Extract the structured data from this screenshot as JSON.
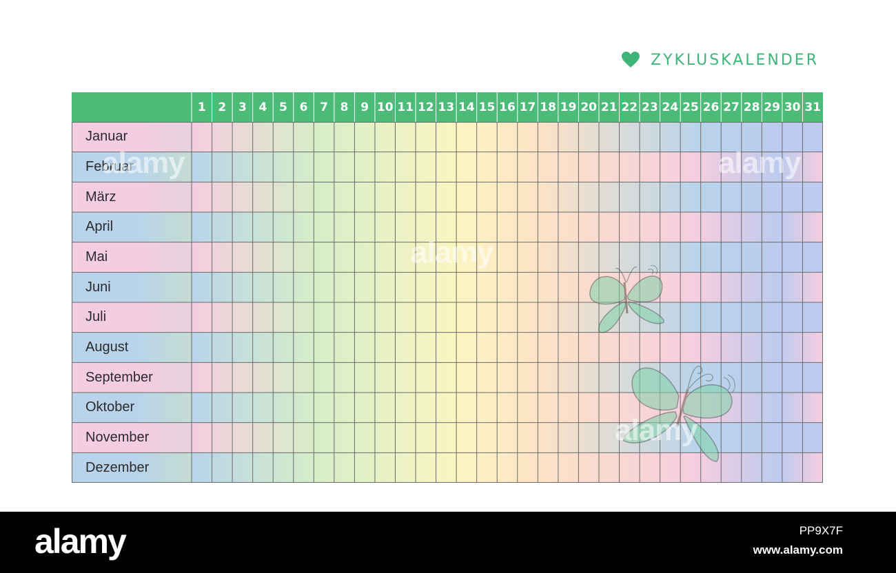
{
  "title": "ZYKLUSKALENDER",
  "icons": {
    "title_icon": "heart-icon",
    "decoration": "butterfly-icon"
  },
  "colors": {
    "accent": "#4cbb78",
    "title": "#3fb57a",
    "row_pink": "#f5cde0",
    "row_blue": "#b9d4ea",
    "band_yellow": "#fbf5c2",
    "band_green": "#d6eec8",
    "end_blue": "#bccbee"
  },
  "days": [
    "1",
    "2",
    "3",
    "4",
    "5",
    "6",
    "7",
    "8",
    "9",
    "10",
    "11",
    "12",
    "13",
    "14",
    "15",
    "16",
    "17",
    "18",
    "19",
    "20",
    "21",
    "22",
    "23",
    "24",
    "25",
    "26",
    "27",
    "28",
    "29",
    "30",
    "31"
  ],
  "months": [
    "Januar",
    "Februar",
    "März",
    "April",
    "Mai",
    "Juni",
    "Juli",
    "August",
    "September",
    "Oktober",
    "November",
    "Dezember"
  ],
  "watermark": {
    "text": "alamy",
    "image_id": "PP9X7F",
    "url": "www.alamy.com"
  }
}
